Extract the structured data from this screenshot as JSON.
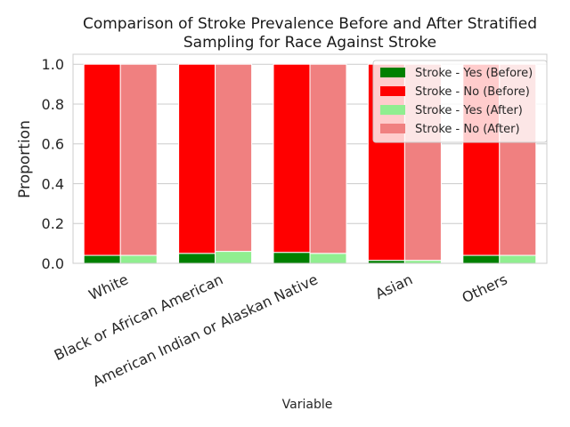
{
  "chart_data": {
    "type": "bar",
    "stacked": true,
    "title": [
      "Comparison of Stroke Prevalence Before and After Stratified",
      "Sampling for Race Against Stroke"
    ],
    "xlabel": "Variable",
    "ylabel": "Proportion",
    "ylim": [
      0,
      1.05
    ],
    "yticks": [
      "0.0",
      "0.2",
      "0.4",
      "0.6",
      "0.8",
      "1.0"
    ],
    "grid": true,
    "legend_position": "top-right",
    "categories": [
      "White",
      "Black or African American",
      "American Indian or Alaskan Native",
      "Asian",
      "Others"
    ],
    "groups": [
      {
        "label": "Before",
        "series": [
          {
            "name": "Stroke - Yes (Before)",
            "color": "#008000",
            "values": [
              0.04,
              0.05,
              0.055,
              0.015,
              0.04
            ]
          },
          {
            "name": "Stroke - No (Before)",
            "color": "#ff0000",
            "values": [
              0.96,
              0.95,
              0.945,
              0.985,
              0.96
            ]
          }
        ]
      },
      {
        "label": "After",
        "series": [
          {
            "name": "Stroke - Yes (After)",
            "color": "#90ee90",
            "values": [
              0.04,
              0.06,
              0.05,
              0.015,
              0.04
            ]
          },
          {
            "name": "Stroke - No (After)",
            "color": "#f08080",
            "values": [
              0.96,
              0.94,
              0.95,
              0.985,
              0.96
            ]
          }
        ]
      }
    ]
  }
}
